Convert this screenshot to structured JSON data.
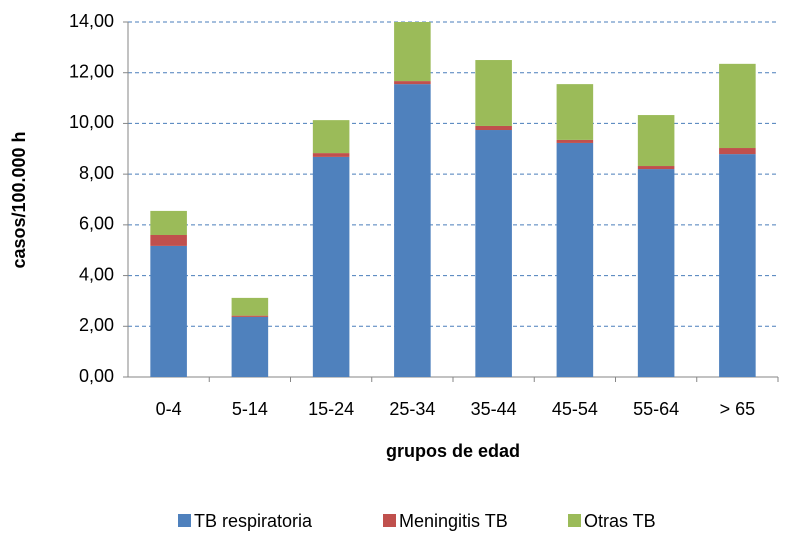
{
  "chart_data": {
    "type": "stacked_bar",
    "xlabel": "grupos de edad",
    "ylabel": "casos/100.000 h",
    "categories": [
      "0-4",
      "5-14",
      "15-24",
      "25-34",
      "35-44",
      "45-54",
      "55-64",
      "> 65"
    ],
    "series": [
      {
        "name": "TB respiratoria",
        "color": "#4f81bd",
        "values": [
          5.17,
          2.37,
          8.68,
          11.55,
          9.74,
          9.23,
          8.2,
          8.79
        ]
      },
      {
        "name": "Meningitis TB",
        "color": "#c0504d",
        "values": [
          0.43,
          0.05,
          0.15,
          0.12,
          0.16,
          0.12,
          0.12,
          0.24
        ]
      },
      {
        "name": "Otras TB",
        "color": "#9bbb59",
        "values": [
          0.95,
          0.7,
          1.3,
          2.33,
          2.6,
          2.2,
          2.01,
          3.32
        ]
      }
    ],
    "ylim": [
      0,
      14
    ],
    "yticks": [
      {
        "value": 0,
        "label": "0,00"
      },
      {
        "value": 2,
        "label": "2,00"
      },
      {
        "value": 4,
        "label": "4,00"
      },
      {
        "value": 6,
        "label": "6,00"
      },
      {
        "value": 8,
        "label": "8,00"
      },
      {
        "value": 10,
        "label": "10,00"
      },
      {
        "value": 12,
        "label": "12,00"
      },
      {
        "value": 14,
        "label": "14,00"
      }
    ],
    "grid": true,
    "legend": "bottom"
  }
}
